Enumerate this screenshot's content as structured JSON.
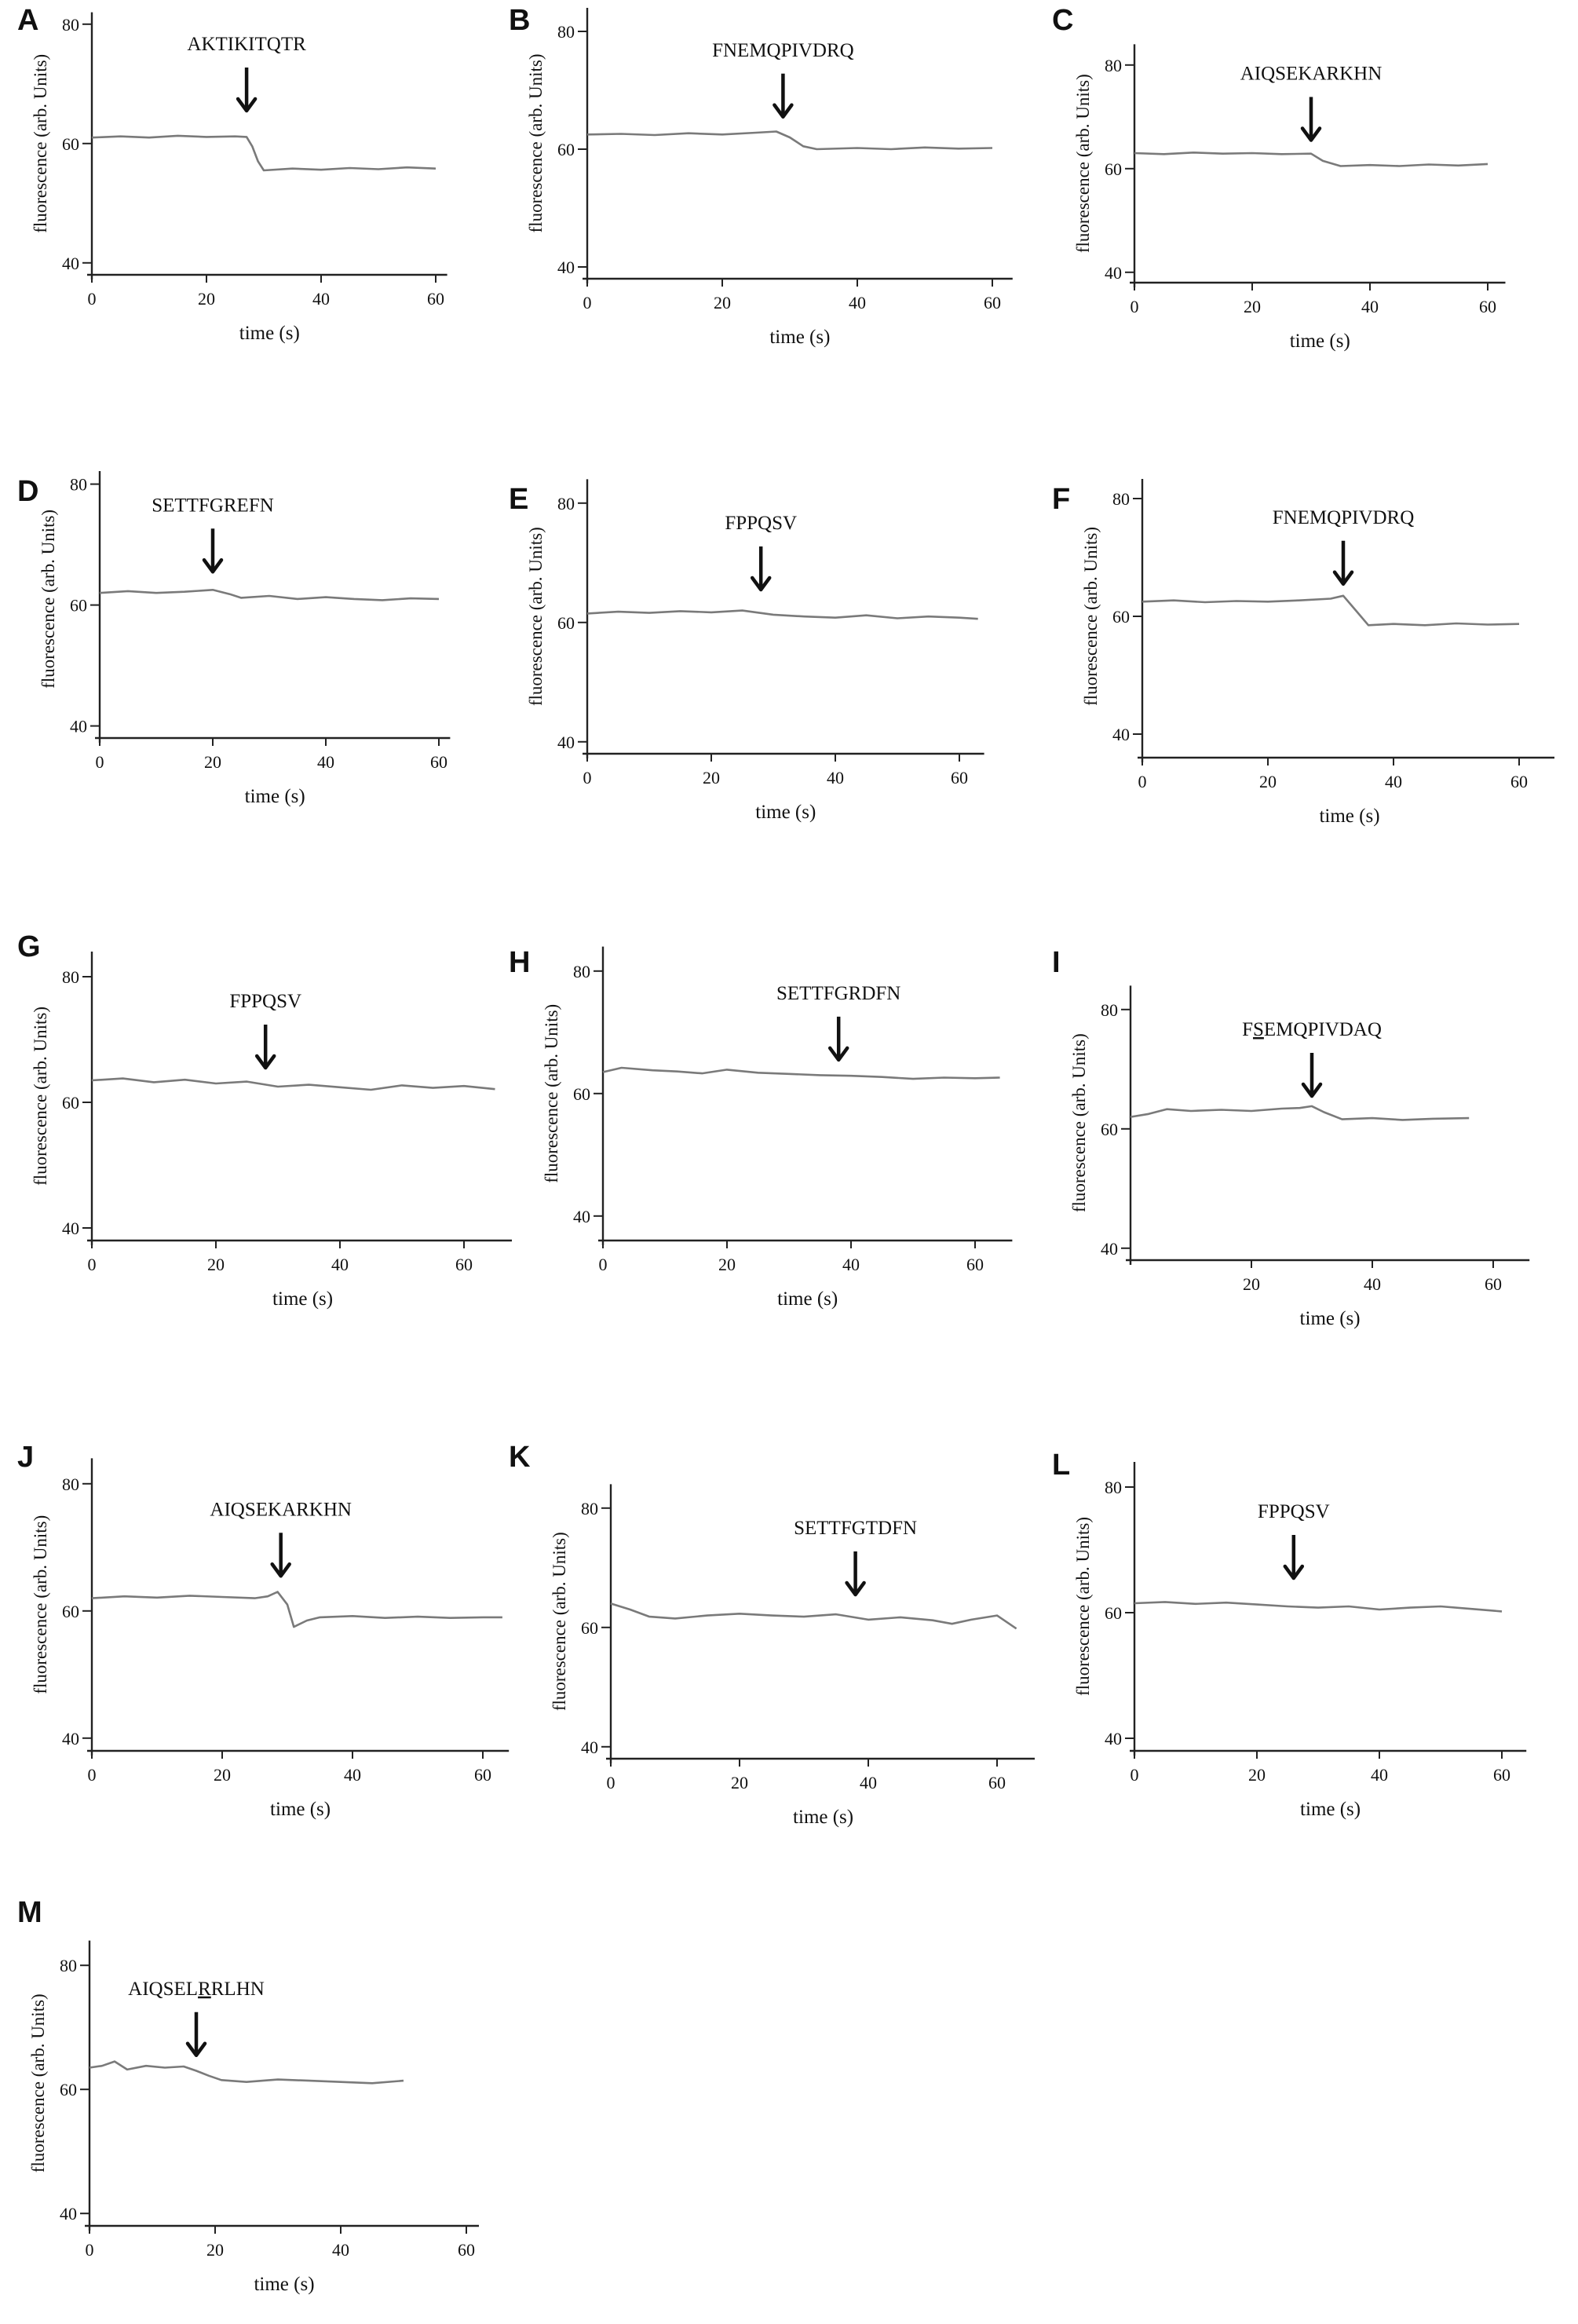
{
  "figure": {
    "y_axis_label": "fluorescence (arb. Units)",
    "x_axis_label": "time (s)"
  },
  "chart_data": [
    {
      "panel": "A",
      "type": "line",
      "peptide": "AKTIKITQTR",
      "arrow_time": 27,
      "x_ticks": [
        0,
        20,
        40,
        60
      ],
      "y_ticks": [
        40,
        60,
        80
      ],
      "xlabel": "time (s)",
      "ylabel": "fluorescence (arb. Units)",
      "xlim": [
        0,
        62
      ],
      "ylim": [
        38,
        82
      ],
      "series": [
        {
          "x": [
            0,
            5,
            10,
            15,
            20,
            25,
            27,
            28,
            29,
            30,
            35,
            40,
            45,
            50,
            55,
            60
          ],
          "y": [
            61,
            61.2,
            61,
            61.3,
            61.1,
            61.2,
            61.1,
            59.5,
            57,
            55.5,
            55.8,
            55.6,
            55.9,
            55.7,
            56,
            55.8
          ]
        }
      ]
    },
    {
      "panel": "B",
      "type": "line",
      "peptide": "FNEMQPIVDRQ",
      "arrow_time": 29,
      "x_ticks": [
        0,
        20,
        40,
        60
      ],
      "y_ticks": [
        40,
        60,
        80
      ],
      "xlabel": "time (s)",
      "ylabel": "fluorescence (arb. Units)",
      "xlim": [
        0,
        63
      ],
      "ylim": [
        38,
        84
      ],
      "series": [
        {
          "x": [
            0,
            5,
            10,
            15,
            20,
            25,
            28,
            30,
            32,
            34,
            40,
            45,
            50,
            55,
            60
          ],
          "y": [
            62.5,
            62.6,
            62.4,
            62.7,
            62.5,
            62.8,
            63,
            62,
            60.5,
            60,
            60.2,
            60,
            60.3,
            60.1,
            60.2
          ]
        }
      ]
    },
    {
      "panel": "C",
      "type": "line",
      "peptide": "AIQSEKARKHN",
      "arrow_time": 30,
      "x_ticks": [
        0,
        20,
        40,
        60
      ],
      "y_ticks": [
        40,
        60,
        80
      ],
      "xlabel": "time (s)",
      "ylabel": "fluorescence (arb. Units)",
      "xlim": [
        0,
        63
      ],
      "ylim": [
        38,
        84
      ],
      "series": [
        {
          "x": [
            0,
            5,
            10,
            15,
            20,
            25,
            30,
            32,
            35,
            40,
            45,
            50,
            55,
            60
          ],
          "y": [
            63,
            62.8,
            63.1,
            62.9,
            63,
            62.8,
            62.9,
            61.5,
            60.5,
            60.7,
            60.5,
            60.8,
            60.6,
            60.9
          ]
        }
      ]
    },
    {
      "panel": "D",
      "type": "line",
      "peptide": "SETTFGREFN",
      "arrow_time": 20,
      "x_ticks": [
        0,
        20,
        40,
        60
      ],
      "y_ticks": [
        40,
        60,
        80
      ],
      "xlabel": "time (s)",
      "ylabel": "fluorescence (arb. Units)",
      "xlim": [
        0,
        62
      ],
      "ylim": [
        38,
        84
      ],
      "series": [
        {
          "x": [
            0,
            5,
            10,
            15,
            20,
            23,
            25,
            30,
            35,
            40,
            45,
            50,
            55,
            60
          ],
          "y": [
            62,
            62.3,
            62,
            62.2,
            62.5,
            61.8,
            61.2,
            61.5,
            61,
            61.3,
            61,
            60.8,
            61.1,
            61
          ]
        }
      ]
    },
    {
      "panel": "E",
      "type": "line",
      "peptide": "FPPQSV",
      "arrow_time": 28,
      "x_ticks": [
        0,
        20,
        40,
        60
      ],
      "y_ticks": [
        40,
        60,
        80
      ],
      "xlabel": "time (s)",
      "ylabel": "fluorescence (arb. Units)",
      "xlim": [
        0,
        64
      ],
      "ylim": [
        38,
        84
      ],
      "series": [
        {
          "x": [
            0,
            5,
            10,
            15,
            20,
            25,
            30,
            35,
            40,
            45,
            50,
            55,
            60,
            63
          ],
          "y": [
            61.5,
            61.8,
            61.6,
            61.9,
            61.7,
            62,
            61.3,
            61,
            60.8,
            61.2,
            60.7,
            61,
            60.8,
            60.6
          ]
        }
      ]
    },
    {
      "panel": "F",
      "type": "line",
      "peptide": "FNEMQPIVDRQ",
      "arrow_time": 32,
      "x_ticks": [
        0,
        20,
        40,
        60
      ],
      "y_ticks": [
        40,
        60,
        80
      ],
      "xlabel": "time (s)",
      "ylabel": "fluorescence (arb. Units)",
      "xlim": [
        0,
        66
      ],
      "ylim": [
        36,
        84
      ],
      "series": [
        {
          "x": [
            0,
            5,
            10,
            15,
            20,
            25,
            30,
            32,
            34,
            36,
            40,
            45,
            50,
            55,
            60
          ],
          "y": [
            62.5,
            62.7,
            62.4,
            62.6,
            62.5,
            62.7,
            63,
            63.5,
            61,
            58.5,
            58.7,
            58.5,
            58.8,
            58.6,
            58.7
          ]
        }
      ]
    },
    {
      "panel": "G",
      "type": "line",
      "peptide": "FPPQSV",
      "arrow_time": 28,
      "x_ticks": [
        0,
        20,
        40,
        60
      ],
      "y_ticks": [
        40,
        60,
        80
      ],
      "xlabel": "time (s)",
      "ylabel": "fluorescence (arb. Units)",
      "xlim": [
        0,
        68
      ],
      "ylim": [
        38,
        84
      ],
      "series": [
        {
          "x": [
            0,
            5,
            10,
            15,
            20,
            25,
            30,
            35,
            40,
            45,
            50,
            55,
            60,
            65
          ],
          "y": [
            63.5,
            63.8,
            63.2,
            63.6,
            63,
            63.3,
            62.5,
            62.8,
            62.4,
            62,
            62.7,
            62.3,
            62.6,
            62.1
          ]
        }
      ]
    },
    {
      "panel": "H",
      "type": "line",
      "peptide": "SETTFGRDFN",
      "arrow_time": 38,
      "x_ticks": [
        0,
        20,
        40,
        60
      ],
      "y_ticks": [
        40,
        60,
        80
      ],
      "xlabel": "time (s)",
      "ylabel": "fluorescence (arb. Units)",
      "xlim": [
        0,
        66
      ],
      "ylim": [
        36,
        84
      ],
      "series": [
        {
          "x": [
            0,
            3,
            8,
            12,
            16,
            20,
            25,
            30,
            35,
            40,
            45,
            50,
            55,
            60,
            64
          ],
          "y": [
            63.5,
            64.2,
            63.8,
            63.6,
            63.3,
            63.9,
            63.4,
            63.2,
            63,
            62.9,
            62.7,
            62.4,
            62.6,
            62.5,
            62.6
          ]
        }
      ]
    },
    {
      "panel": "I",
      "type": "line",
      "peptide": "FSEMQPIVDAQ",
      "peptide_underlined_char_index": 1,
      "arrow_time": 30,
      "x_ticks": [
        20,
        40,
        60
      ],
      "y_ticks": [
        40,
        60,
        80
      ],
      "xlabel": "time (s)",
      "ylabel": "fluorescence (arb. Units)",
      "xlim": [
        0,
        66
      ],
      "ylim": [
        38,
        84
      ],
      "series": [
        {
          "x": [
            0,
            3,
            6,
            10,
            15,
            20,
            25,
            28,
            30,
            32,
            35,
            40,
            45,
            50,
            56
          ],
          "y": [
            62,
            62.5,
            63.3,
            63,
            63.2,
            63,
            63.4,
            63.5,
            63.8,
            62.8,
            61.6,
            61.8,
            61.5,
            61.7,
            61.8
          ]
        }
      ]
    },
    {
      "panel": "J",
      "type": "line",
      "peptide": "AIQSEKARKHN",
      "arrow_time": 29,
      "x_ticks": [
        0,
        20,
        40,
        60
      ],
      "y_ticks": [
        40,
        60,
        80
      ],
      "xlabel": "time (s)",
      "ylabel": "fluorescence (arb. Units)",
      "xlim": [
        0,
        64
      ],
      "ylim": [
        38,
        84
      ],
      "series": [
        {
          "x": [
            0,
            5,
            10,
            15,
            20,
            25,
            27,
            28.5,
            30,
            31,
            33,
            35,
            40,
            45,
            50,
            55,
            60,
            63
          ],
          "y": [
            62,
            62.3,
            62.1,
            62.4,
            62.2,
            62,
            62.3,
            63,
            61,
            57.5,
            58.5,
            59,
            59.2,
            58.9,
            59.1,
            58.9,
            59,
            59
          ]
        }
      ]
    },
    {
      "panel": "K",
      "type": "line",
      "peptide": "SETTFGTDFN",
      "arrow_time": 38,
      "x_ticks": [
        0,
        20,
        40,
        60
      ],
      "y_ticks": [
        40,
        60,
        80
      ],
      "xlabel": "time (s)",
      "ylabel": "fluorescence (arb. Units)",
      "xlim": [
        0,
        66
      ],
      "ylim": [
        38,
        84
      ],
      "series": [
        {
          "x": [
            0,
            3,
            6,
            10,
            15,
            20,
            25,
            30,
            35,
            40,
            45,
            50,
            53,
            56,
            60,
            63
          ],
          "y": [
            64,
            63,
            61.8,
            61.5,
            62,
            62.3,
            62,
            61.8,
            62.2,
            61.3,
            61.7,
            61.2,
            60.6,
            61.3,
            62,
            59.8
          ]
        }
      ]
    },
    {
      "panel": "L",
      "type": "line",
      "peptide": "FPPQSV",
      "arrow_time": 26,
      "x_ticks": [
        0,
        20,
        40,
        60
      ],
      "y_ticks": [
        40,
        60,
        80
      ],
      "xlabel": "time (s)",
      "ylabel": "fluorescence (arb. Units)",
      "xlim": [
        0,
        64
      ],
      "ylim": [
        38,
        84
      ],
      "series": [
        {
          "x": [
            0,
            5,
            10,
            15,
            20,
            25,
            30,
            35,
            40,
            45,
            50,
            55,
            60
          ],
          "y": [
            61.5,
            61.7,
            61.4,
            61.6,
            61.3,
            61,
            60.8,
            61,
            60.5,
            60.8,
            61,
            60.6,
            60.2
          ]
        }
      ]
    },
    {
      "panel": "M",
      "type": "line",
      "peptide": "AIQSELRRLHN",
      "peptide_underlined_char_index": 6,
      "arrow_time": 17,
      "x_ticks": [
        0,
        20,
        40,
        60
      ],
      "y_ticks": [
        40,
        60,
        80
      ],
      "xlabel": "time (s)",
      "ylabel": "fluorescence (arb. Units)",
      "xlim": [
        0,
        62
      ],
      "ylim": [
        38,
        84
      ],
      "series": [
        {
          "x": [
            0,
            2,
            4,
            6,
            9,
            12,
            15,
            17,
            19,
            21,
            25,
            30,
            35,
            40,
            45,
            50
          ],
          "y": [
            63.5,
            63.8,
            64.5,
            63.2,
            63.8,
            63.5,
            63.7,
            63,
            62.2,
            61.5,
            61.2,
            61.6,
            61.4,
            61.2,
            61,
            61.4
          ]
        }
      ]
    }
  ]
}
